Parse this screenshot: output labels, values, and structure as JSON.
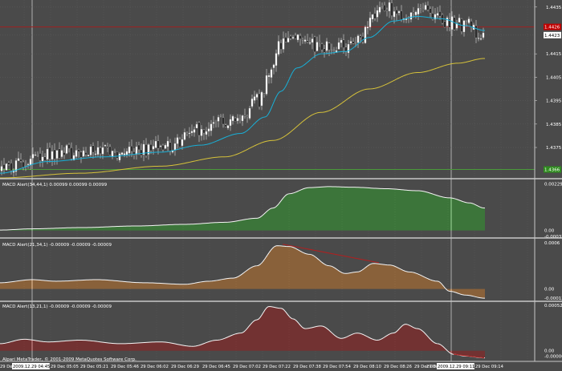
{
  "chart_data": [
    {
      "type": "candlestick",
      "ylim": [
        1.4362,
        1.4438
      ],
      "tick_labels": [
        "1.4435",
        "1.4426",
        "1.4423",
        "1.4415",
        "1.4405",
        "1.4395",
        "1.4385",
        "1.4375",
        "1.4366"
      ],
      "tick_values": [
        1.4435,
        1.44265,
        1.4423,
        1.4415,
        1.4405,
        1.4395,
        1.4385,
        1.4375,
        1.43656
      ],
      "red_line_value": 1.44265,
      "green_line_value": 1.43656,
      "red_line_label": "1.4426",
      "current_price_label": "1.4423",
      "green_line_label": "1.4366",
      "price_keyframes": [
        [
          0,
          1.4365
        ],
        [
          20,
          1.4368
        ],
        [
          45,
          1.4372
        ],
        [
          60,
          1.4372
        ],
        [
          90,
          1.4373
        ],
        [
          130,
          1.4373
        ],
        [
          170,
          1.4374
        ],
        [
          215,
          1.4376
        ],
        [
          240,
          1.4382
        ],
        [
          265,
          1.4385
        ],
        [
          300,
          1.4388
        ],
        [
          322,
          1.4395
        ],
        [
          335,
          1.4404
        ],
        [
          345,
          1.4418
        ],
        [
          370,
          1.4421
        ],
        [
          395,
          1.4418
        ],
        [
          420,
          1.4418
        ],
        [
          445,
          1.442
        ],
        [
          465,
          1.4431
        ],
        [
          480,
          1.4436
        ],
        [
          495,
          1.4431
        ],
        [
          520,
          1.4434
        ],
        [
          540,
          1.4432
        ],
        [
          560,
          1.4428
        ],
        [
          585,
          1.4427
        ],
        [
          600,
          1.4423
        ]
      ],
      "ma_fast_keyframes": [
        [
          0,
          1.4364
        ],
        [
          60,
          1.4369
        ],
        [
          130,
          1.4371
        ],
        [
          200,
          1.4373
        ],
        [
          250,
          1.4376
        ],
        [
          300,
          1.4381
        ],
        [
          330,
          1.4388
        ],
        [
          350,
          1.4399
        ],
        [
          370,
          1.4409
        ],
        [
          400,
          1.4415
        ],
        [
          430,
          1.4416
        ],
        [
          460,
          1.4422
        ],
        [
          490,
          1.4429
        ],
        [
          520,
          1.4431
        ],
        [
          550,
          1.443
        ],
        [
          580,
          1.4427
        ],
        [
          603,
          1.4425
        ]
      ],
      "ma_slow_keyframes": [
        [
          0,
          1.4362
        ],
        [
          100,
          1.4364
        ],
        [
          200,
          1.4367
        ],
        [
          280,
          1.4371
        ],
        [
          340,
          1.4378
        ],
        [
          400,
          1.439
        ],
        [
          460,
          1.44
        ],
        [
          520,
          1.4407
        ],
        [
          570,
          1.4411
        ],
        [
          603,
          1.4413
        ]
      ]
    },
    {
      "type": "bar",
      "label": "MACD Alert(34,44,1) 0.00099 0.00099 0.00099",
      "tick_labels": [
        "0.00229",
        "0.00",
        "-0.00033"
      ],
      "tick_values": [
        0.00229,
        0.0,
        -0.00033
      ],
      "ylim": [
        -0.00033,
        0.0025
      ],
      "value_keyframes": [
        [
          0,
          2e-05
        ],
        [
          40,
          8e-05
        ],
        [
          100,
          0.00014
        ],
        [
          170,
          0.00022
        ],
        [
          230,
          0.0003
        ],
        [
          280,
          0.0004
        ],
        [
          320,
          0.0006
        ],
        [
          340,
          0.0011
        ],
        [
          360,
          0.0018
        ],
        [
          385,
          0.0021
        ],
        [
          410,
          0.00215
        ],
        [
          440,
          0.00212
        ],
        [
          480,
          0.00205
        ],
        [
          520,
          0.00195
        ],
        [
          560,
          0.0016
        ],
        [
          585,
          0.00135
        ],
        [
          603,
          0.0011
        ]
      ]
    },
    {
      "type": "bar",
      "label": "MACD Alert(21,34,1) -0.00009 -0.00009 -0.00009",
      "tick_labels": [
        "0.0006",
        "0.00",
        "-0.00012"
      ],
      "tick_values": [
        0.0006,
        0.0,
        -0.00012
      ],
      "ylim": [
        -0.00015,
        0.00065
      ],
      "value_keyframes": [
        [
          0,
          8e-05
        ],
        [
          40,
          0.00012
        ],
        [
          70,
          0.0001
        ],
        [
          120,
          0.00012
        ],
        [
          180,
          8e-05
        ],
        [
          230,
          6e-05
        ],
        [
          260,
          0.0001
        ],
        [
          290,
          0.00014
        ],
        [
          320,
          0.0003
        ],
        [
          345,
          0.00056
        ],
        [
          360,
          0.00055
        ],
        [
          385,
          0.00045
        ],
        [
          410,
          0.0003
        ],
        [
          430,
          0.0002
        ],
        [
          445,
          0.00022
        ],
        [
          465,
          0.00033
        ],
        [
          485,
          0.00031
        ],
        [
          510,
          0.00022
        ],
        [
          545,
          0.0001
        ],
        [
          560,
          -3e-05
        ],
        [
          580,
          -8e-05
        ],
        [
          603,
          -0.00012
        ]
      ]
    },
    {
      "type": "bar",
      "label": "MACD Alert(13,21,1) -0.00009 -0.00009 -0.00009",
      "tick_labels": [
        "0.00052",
        "0.00",
        "-0.00006"
      ],
      "tick_values": [
        0.00052,
        0.0,
        -6e-05
      ],
      "ylim": [
        -0.00012,
        0.00055
      ],
      "value_keyframes": [
        [
          0,
          8e-05
        ],
        [
          30,
          0.00013
        ],
        [
          60,
          0.0001
        ],
        [
          100,
          0.00012
        ],
        [
          150,
          8e-05
        ],
        [
          200,
          0.0001
        ],
        [
          240,
          5e-05
        ],
        [
          270,
          0.00012
        ],
        [
          300,
          0.0002
        ],
        [
          320,
          0.00035
        ],
        [
          335,
          0.0005
        ],
        [
          350,
          0.00048
        ],
        [
          365,
          0.00036
        ],
        [
          380,
          0.00025
        ],
        [
          400,
          0.00028
        ],
        [
          425,
          0.00014
        ],
        [
          445,
          0.0002
        ],
        [
          470,
          0.00012
        ],
        [
          490,
          0.0002
        ],
        [
          505,
          0.0003
        ],
        [
          520,
          0.00025
        ],
        [
          545,
          8e-05
        ],
        [
          565,
          -4e-05
        ],
        [
          580,
          -6e-05
        ],
        [
          603,
          -8e-05
        ]
      ]
    }
  ],
  "time_axis": {
    "labels": [
      "29 Dec",
      "2009.12.29 04:45",
      "29 Dec 05:05",
      "29 Dec 05:21",
      "29 Dec 05:46",
      "29 Dec 06:02",
      "29 Dec 06:29",
      "29 Dec 06:45",
      "29 Dec 07:02",
      "29 Dec 07:22",
      "29 Dec 07:38",
      "29 Dec 07:54",
      "29 Dec 08:10",
      "29 Dec 08:26",
      "29 Dec 08:42",
      "29 Dec 08:",
      "2009.12.29 09:11",
      "29 Dec 09:14"
    ],
    "highlighted": [
      "2009.12.29 04:45",
      "2009.12.29 09:11"
    ]
  },
  "copyright": "Alpari MetaTrader, © 2001-2009 MetaQuotes Software Corp.",
  "colors": {
    "background": "#4a4a4a",
    "grid": "#5a5a5a",
    "separator": "#c8c8c8",
    "crosshair": "#c8c8c8",
    "red_line": "#a02020",
    "green_line": "#4a9a3a",
    "ma_fast": "#18b0d8",
    "ma_slow": "#d6c23a",
    "price_tag": "#c00000",
    "green_tag": "#2e8b1e",
    "bull": "#ffffff",
    "bear": "#111111",
    "histo1": "#2fa02a",
    "histo2": "#c8782a",
    "histo3": "#9a1a1a",
    "macd_line": "#f4f4f4",
    "divergence_line": "#b02020"
  }
}
